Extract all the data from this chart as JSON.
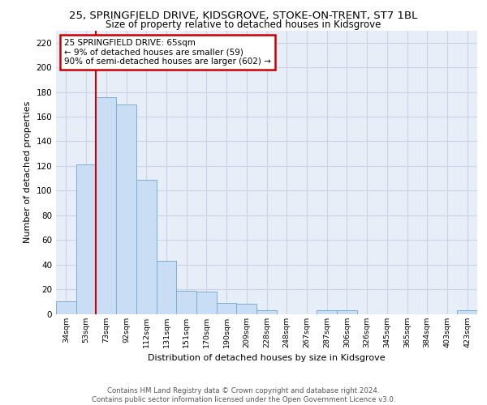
{
  "title1": "25, SPRINGFIELD DRIVE, KIDSGROVE, STOKE-ON-TRENT, ST7 1BL",
  "title2": "Size of property relative to detached houses in Kidsgrove",
  "xlabel": "Distribution of detached houses by size in Kidsgrove",
  "ylabel": "Number of detached properties",
  "categories": [
    "34sqm",
    "53sqm",
    "73sqm",
    "92sqm",
    "112sqm",
    "131sqm",
    "151sqm",
    "170sqm",
    "190sqm",
    "209sqm",
    "228sqm",
    "248sqm",
    "267sqm",
    "287sqm",
    "306sqm",
    "326sqm",
    "345sqm",
    "365sqm",
    "384sqm",
    "403sqm",
    "423sqm"
  ],
  "values": [
    10,
    121,
    176,
    170,
    109,
    43,
    19,
    18,
    9,
    8,
    3,
    0,
    0,
    3,
    3,
    0,
    0,
    0,
    0,
    0,
    3
  ],
  "bar_color": "#c9ddf5",
  "bar_edge_color": "#7bafd4",
  "vline_color": "#cc0000",
  "annotation_text": "25 SPRINGFIELD DRIVE: 65sqm\n← 9% of detached houses are smaller (59)\n90% of semi-detached houses are larger (602) →",
  "annotation_box_color": "#ffffff",
  "annotation_box_edge": "#cc0000",
  "grid_color": "#c8d4e8",
  "background_color": "#e8eef8",
  "footer_text": "Contains HM Land Registry data © Crown copyright and database right 2024.\nContains public sector information licensed under the Open Government Licence v3.0.",
  "ylim": [
    0,
    230
  ],
  "yticks": [
    0,
    20,
    40,
    60,
    80,
    100,
    120,
    140,
    160,
    180,
    200,
    220
  ]
}
